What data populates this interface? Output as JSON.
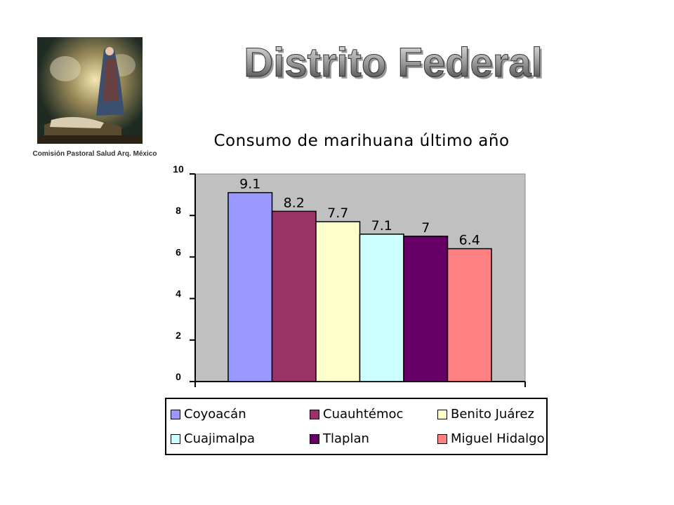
{
  "header": {
    "title": "Distrito Federal"
  },
  "logo": {
    "caption": "Comisión Pastoral Salud  Arq. México"
  },
  "chart_data": {
    "type": "bar",
    "title": "Consumo de marihuana último año",
    "categories": [
      "Coyoacán",
      "Cuauhtémoc",
      "Benito Juárez",
      "Cuajimalpa",
      "Tlaplan",
      "Miguel Hidalgo"
    ],
    "values": [
      9.1,
      8.2,
      7.7,
      7.1,
      7,
      6.4
    ],
    "value_labels": [
      "9.1",
      "8.2",
      "7.7",
      "7.1",
      "7",
      "6.4"
    ],
    "colors": [
      "#9999ff",
      "#993366",
      "#ffffcc",
      "#ccffff",
      "#660066",
      "#ff8080"
    ],
    "ylim": [
      0,
      10
    ],
    "yticks": [
      "0",
      "2",
      "4",
      "6",
      "8",
      "10"
    ],
    "plot_background": "#c0c0c0",
    "grid": false,
    "legend_position": "bottom"
  }
}
